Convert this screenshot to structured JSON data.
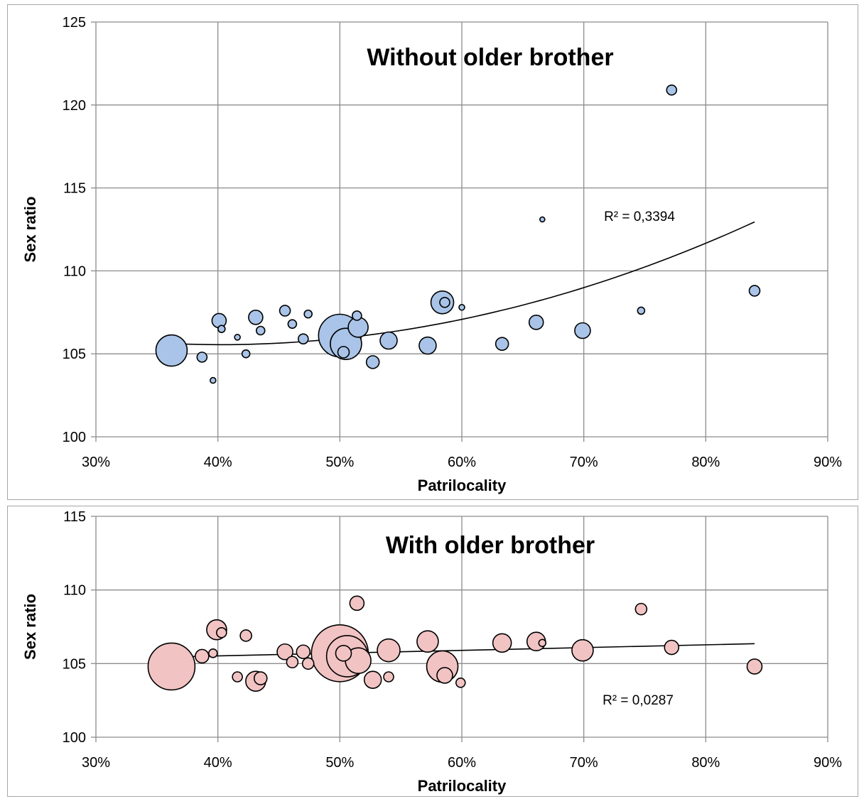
{
  "chart_data": [
    {
      "type": "scatter",
      "title": "Without older brother",
      "xlabel": "Patrilocality",
      "ylabel": "Sex ratio",
      "xlim": [
        0.3,
        0.9
      ],
      "ylim": [
        100,
        125
      ],
      "x_ticks": [
        "30%",
        "40%",
        "50%",
        "60%",
        "70%",
        "80%",
        "90%"
      ],
      "y_ticks": [
        "100",
        "105",
        "110",
        "115",
        "120",
        "125"
      ],
      "grid": true,
      "bubble_color": "#a9c4e8",
      "trendline": {
        "type": "polynomial",
        "x_range": [
          0.362,
          0.84
        ],
        "r2_label": "R² = 0,3394"
      },
      "points": [
        {
          "x": 0.362,
          "y": 105.2,
          "size": 22
        },
        {
          "x": 0.387,
          "y": 104.8,
          "size": 7
        },
        {
          "x": 0.396,
          "y": 103.4,
          "size": 4
        },
        {
          "x": 0.401,
          "y": 107.0,
          "size": 10
        },
        {
          "x": 0.403,
          "y": 106.5,
          "size": 5
        },
        {
          "x": 0.416,
          "y": 106.0,
          "size": 4
        },
        {
          "x": 0.423,
          "y": 105.0,
          "size": 5.5
        },
        {
          "x": 0.431,
          "y": 107.2,
          "size": 10
        },
        {
          "x": 0.435,
          "y": 106.4,
          "size": 6
        },
        {
          "x": 0.455,
          "y": 107.6,
          "size": 7.5
        },
        {
          "x": 0.461,
          "y": 106.8,
          "size": 6
        },
        {
          "x": 0.47,
          "y": 105.9,
          "size": 7
        },
        {
          "x": 0.474,
          "y": 107.4,
          "size": 5.5
        },
        {
          "x": 0.5,
          "y": 106.1,
          "size": 30
        },
        {
          "x": 0.505,
          "y": 105.6,
          "size": 22
        },
        {
          "x": 0.503,
          "y": 105.1,
          "size": 8
        },
        {
          "x": 0.515,
          "y": 106.6,
          "size": 14
        },
        {
          "x": 0.514,
          "y": 107.3,
          "size": 6.5
        },
        {
          "x": 0.527,
          "y": 104.5,
          "size": 9
        },
        {
          "x": 0.54,
          "y": 105.8,
          "size": 12
        },
        {
          "x": 0.572,
          "y": 105.5,
          "size": 12
        },
        {
          "x": 0.584,
          "y": 108.1,
          "size": 16
        },
        {
          "x": 0.586,
          "y": 108.1,
          "size": 7
        },
        {
          "x": 0.6,
          "y": 107.8,
          "size": 4
        },
        {
          "x": 0.633,
          "y": 105.6,
          "size": 9
        },
        {
          "x": 0.661,
          "y": 106.9,
          "size": 10
        },
        {
          "x": 0.666,
          "y": 113.1,
          "size": 3.5
        },
        {
          "x": 0.699,
          "y": 106.4,
          "size": 11
        },
        {
          "x": 0.747,
          "y": 107.6,
          "size": 5
        },
        {
          "x": 0.772,
          "y": 120.9,
          "size": 7
        },
        {
          "x": 0.84,
          "y": 108.8,
          "size": 7.5
        }
      ]
    },
    {
      "type": "scatter",
      "title": "With older brother",
      "xlabel": "Patrilocality",
      "ylabel": "Sex ratio",
      "xlim": [
        0.3,
        0.9
      ],
      "ylim": [
        100,
        115
      ],
      "x_ticks": [
        "30%",
        "40%",
        "50%",
        "60%",
        "70%",
        "80%",
        "90%"
      ],
      "y_ticks": [
        "100",
        "105",
        "110",
        "115"
      ],
      "grid": true,
      "bubble_color": "#f2c3c3",
      "trendline": {
        "type": "linear",
        "x_range": [
          0.362,
          0.84
        ],
        "r2_label": "R² = 0,0287"
      },
      "points": [
        {
          "x": 0.362,
          "y": 104.8,
          "size": 33
        },
        {
          "x": 0.387,
          "y": 105.5,
          "size": 9.5
        },
        {
          "x": 0.396,
          "y": 105.7,
          "size": 6
        },
        {
          "x": 0.399,
          "y": 107.3,
          "size": 14
        },
        {
          "x": 0.403,
          "y": 107.1,
          "size": 7
        },
        {
          "x": 0.423,
          "y": 106.9,
          "size": 8
        },
        {
          "x": 0.416,
          "y": 104.1,
          "size": 7
        },
        {
          "x": 0.431,
          "y": 103.8,
          "size": 14
        },
        {
          "x": 0.435,
          "y": 104.0,
          "size": 9
        },
        {
          "x": 0.455,
          "y": 105.8,
          "size": 11
        },
        {
          "x": 0.461,
          "y": 105.1,
          "size": 8
        },
        {
          "x": 0.47,
          "y": 105.8,
          "size": 9.5
        },
        {
          "x": 0.474,
          "y": 105.0,
          "size": 8
        },
        {
          "x": 0.5,
          "y": 105.7,
          "size": 40
        },
        {
          "x": 0.506,
          "y": 105.5,
          "size": 29
        },
        {
          "x": 0.503,
          "y": 105.7,
          "size": 11
        },
        {
          "x": 0.515,
          "y": 105.2,
          "size": 18
        },
        {
          "x": 0.514,
          "y": 109.1,
          "size": 10
        },
        {
          "x": 0.527,
          "y": 103.9,
          "size": 12
        },
        {
          "x": 0.54,
          "y": 105.9,
          "size": 16
        },
        {
          "x": 0.54,
          "y": 104.1,
          "size": 7
        },
        {
          "x": 0.572,
          "y": 106.5,
          "size": 15
        },
        {
          "x": 0.584,
          "y": 104.8,
          "size": 22
        },
        {
          "x": 0.586,
          "y": 104.2,
          "size": 11
        },
        {
          "x": 0.599,
          "y": 103.7,
          "size": 6.5
        },
        {
          "x": 0.633,
          "y": 106.4,
          "size": 13
        },
        {
          "x": 0.661,
          "y": 106.5,
          "size": 13
        },
        {
          "x": 0.666,
          "y": 106.4,
          "size": 5
        },
        {
          "x": 0.699,
          "y": 105.9,
          "size": 15
        },
        {
          "x": 0.747,
          "y": 108.7,
          "size": 8
        },
        {
          "x": 0.772,
          "y": 106.1,
          "size": 10
        },
        {
          "x": 0.84,
          "y": 104.8,
          "size": 10.5
        }
      ]
    }
  ]
}
